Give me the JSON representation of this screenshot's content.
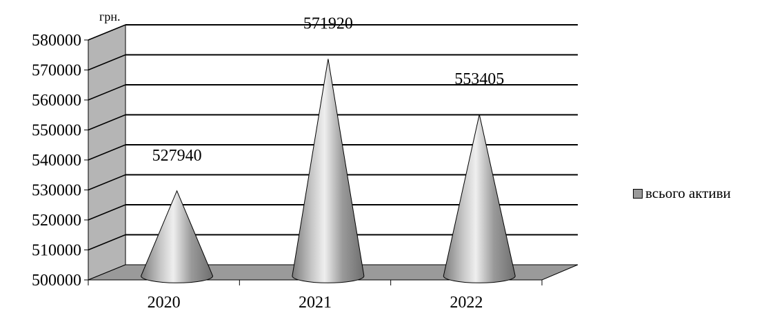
{
  "chart_data": {
    "type": "bar",
    "bar_shape": "cone",
    "three_d": true,
    "unit": "грн.",
    "categories": [
      "2020",
      "2021",
      "2022"
    ],
    "series": [
      {
        "name": "всього активи",
        "values": [
          527940,
          571920,
          553405
        ]
      }
    ],
    "ylim": [
      500000,
      580000
    ],
    "yticks": [
      "500000",
      "510000",
      "520000",
      "530000",
      "540000",
      "550000",
      "560000",
      "570000",
      "580000"
    ],
    "grid": true,
    "legend_position": "right",
    "colors": {
      "cone": "#9a9a9a",
      "wall": "#b5b5b5",
      "floor": "#9a9a9a",
      "grid": "#000000"
    }
  }
}
